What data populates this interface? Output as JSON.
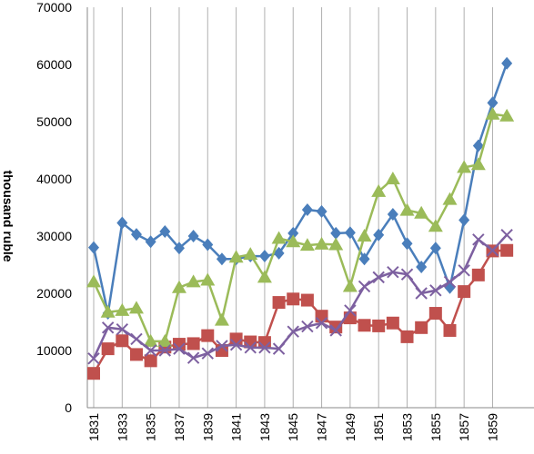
{
  "chart_data": {
    "type": "line",
    "ylabel": "thousand ruble",
    "ylim": [
      0,
      70000
    ],
    "yticks": [
      0,
      10000,
      20000,
      30000,
      40000,
      50000,
      60000,
      70000
    ],
    "x": [
      1831,
      1832,
      1833,
      1834,
      1835,
      1836,
      1837,
      1838,
      1839,
      1840,
      1841,
      1842,
      1843,
      1844,
      1845,
      1846,
      1847,
      1848,
      1849,
      1850,
      1851,
      1852,
      1853,
      1854,
      1855,
      1856,
      1857,
      1858,
      1859,
      1860
    ],
    "xtick_labels": [
      "1831",
      "1833",
      "1835",
      "1837",
      "1839",
      "1841",
      "1843",
      "1845",
      "1847",
      "1849",
      "1851",
      "1853",
      "1855",
      "1857",
      "1859"
    ],
    "grid": "vertical",
    "series": [
      {
        "color": "#4a7ebb",
        "marker": "diamond",
        "values": [
          28000,
          16500,
          32300,
          30300,
          29000,
          30800,
          27900,
          30000,
          28500,
          26000,
          26000,
          26500,
          26500,
          27000,
          30500,
          34600,
          34300,
          30500,
          30600,
          26000,
          30200,
          33800,
          28700,
          24600,
          27900,
          21000,
          32800,
          45800,
          53300,
          60200
        ]
      },
      {
        "color": "#c0504d",
        "marker": "square",
        "values": [
          6000,
          10300,
          11700,
          9300,
          8200,
          10600,
          11100,
          11200,
          12600,
          10000,
          12000,
          11500,
          11400,
          18400,
          19000,
          18800,
          16000,
          14100,
          15700,
          14400,
          14300,
          14800,
          12400,
          14000,
          16500,
          13500,
          20300,
          23200,
          27400,
          27500
        ]
      },
      {
        "color": "#9bbb59",
        "marker": "triangle",
        "values": [
          22000,
          16700,
          17000,
          17400,
          11600,
          11600,
          21000,
          22000,
          22300,
          15300,
          26300,
          26800,
          22800,
          29600,
          29000,
          28400,
          28600,
          28500,
          21200,
          30000,
          37800,
          40000,
          34500,
          34000,
          31700,
          36400,
          42000,
          42500,
          51300,
          51000
        ]
      },
      {
        "color": "#7d60a0",
        "marker": "x",
        "values": [
          8600,
          14000,
          13700,
          12000,
          10000,
          10000,
          10300,
          8700,
          9500,
          10800,
          11000,
          10500,
          10500,
          10300,
          13300,
          14200,
          14800,
          13500,
          17000,
          21200,
          22800,
          23700,
          23300,
          20000,
          20500,
          22000,
          24000,
          29400,
          27500,
          30200
        ]
      }
    ]
  }
}
